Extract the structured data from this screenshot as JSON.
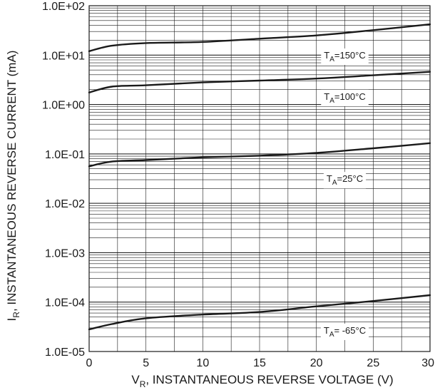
{
  "chart_data": {
    "type": "line",
    "title": "",
    "xlabel": {
      "main": "V",
      "sub": "R",
      "rest": ", INSTANTANEOUS REVERSE VOLTAGE (V)"
    },
    "ylabel": {
      "main": "I",
      "sub": "R",
      "rest": ", INSTANTANEOUS REVERSE CURRENT (mA)"
    },
    "x_scale": "linear",
    "y_scale": "log",
    "xlim": [
      0,
      30
    ],
    "ylim": [
      1e-05,
      100
    ],
    "grid": true,
    "x_ticks": [
      0,
      5,
      10,
      15,
      20,
      25,
      30
    ],
    "x_tick_labels": [
      "0",
      "5",
      "10",
      "15",
      "20",
      "25",
      "30"
    ],
    "y_ticks": [
      1e-05,
      0.0001,
      0.001,
      0.01,
      0.1,
      1,
      10,
      100
    ],
    "y_tick_labels": [
      "1.0E-05",
      "1.0E-04",
      "1.0E-03",
      "1.0E-02",
      "1.0E-01",
      "1.0E+00",
      "1.0E+01",
      "1.0E+02"
    ],
    "x": [
      0,
      2,
      5,
      10,
      15,
      20,
      25,
      30
    ],
    "series": [
      {
        "name": "150°C",
        "label": {
          "main": "T",
          "sub": "A",
          "rest": "=150°C"
        },
        "values": [
          12,
          15.5,
          17.5,
          18.5,
          21.5,
          25,
          32,
          42
        ]
      },
      {
        "name": "100°C",
        "label": {
          "main": "T",
          "sub": "A",
          "rest": "=100°C"
        },
        "values": [
          1.75,
          2.3,
          2.45,
          2.8,
          3.05,
          3.35,
          3.9,
          4.6
        ]
      },
      {
        "name": "25°C",
        "label": {
          "main": "T",
          "sub": "A",
          "rest": "=25°C"
        },
        "values": [
          0.056,
          0.07,
          0.075,
          0.085,
          0.092,
          0.105,
          0.13,
          0.165
        ]
      },
      {
        "name": "-65°C",
        "label": {
          "main": "T",
          "sub": "A",
          "rest": "= -65°C"
        },
        "values": [
          2.8e-05,
          3.6e-05,
          4.7e-05,
          5.6e-05,
          6.3e-05,
          8.2e-05,
          0.000105,
          0.000138
        ]
      }
    ],
    "colors": {
      "line": "#1a1a1a",
      "grid": "#1a1a1a",
      "background": "#ffffff"
    }
  }
}
